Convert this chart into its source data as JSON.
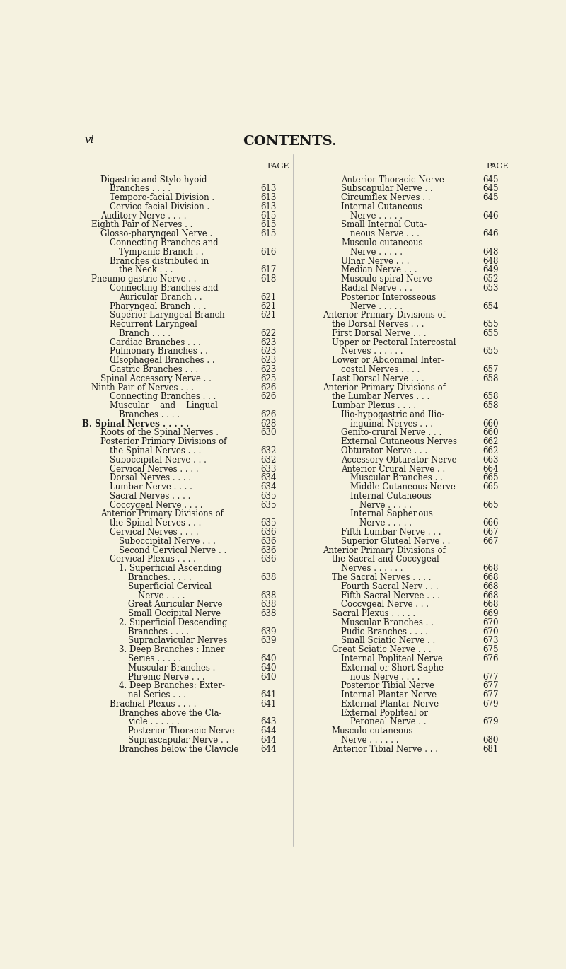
{
  "bg_color": "#f5f2e0",
  "text_color": "#1a1a1a",
  "page_label": "vi",
  "title": "CONTENTS.",
  "left_entries": [
    {
      "indent": 2,
      "text": "Digastric and Stylo-hyoid",
      "page": null
    },
    {
      "indent": 3,
      "text": "Branches . . . .",
      "page": "613"
    },
    {
      "indent": 3,
      "text": "Temporo-facial Division .",
      "page": "613"
    },
    {
      "indent": 3,
      "text": "Cervico-facial Division .",
      "page": "613"
    },
    {
      "indent": 2,
      "text": "Auditory Nerve . . . .",
      "page": "615"
    },
    {
      "indent": 1,
      "text": "Eighth Pair of Nerves . .",
      "page": "615"
    },
    {
      "indent": 2,
      "text": "Glosso-pharyngeal Nerve .",
      "page": "615"
    },
    {
      "indent": 3,
      "text": "Connecting Branches and",
      "page": null
    },
    {
      "indent": 4,
      "text": "Tympanic Branch . .",
      "page": "616"
    },
    {
      "indent": 3,
      "text": "Branches distributed in",
      "page": null
    },
    {
      "indent": 4,
      "text": "the Neck . . .",
      "page": "617"
    },
    {
      "indent": 1,
      "text": "Pneumo-gastric Nerve . .",
      "page": "618"
    },
    {
      "indent": 3,
      "text": "Connecting Branches and",
      "page": null
    },
    {
      "indent": 4,
      "text": "Auricular Branch . .",
      "page": "621"
    },
    {
      "indent": 3,
      "text": "Pharyngeal Branch . . .",
      "page": "621"
    },
    {
      "indent": 3,
      "text": "Superior Laryngeal Branch",
      "page": "621"
    },
    {
      "indent": 3,
      "text": "Recurrent Laryngeal",
      "page": null
    },
    {
      "indent": 4,
      "text": "Branch . . . .",
      "page": "622"
    },
    {
      "indent": 3,
      "text": "Cardiac Branches . . .",
      "page": "623"
    },
    {
      "indent": 3,
      "text": "Pulmonary Branches . .",
      "page": "623"
    },
    {
      "indent": 3,
      "text": "Œsophageal Branches . .",
      "page": "623"
    },
    {
      "indent": 3,
      "text": "Gastric Branches . . .",
      "page": "623"
    },
    {
      "indent": 2,
      "text": "Spinal Accessory Nerve . .",
      "page": "625"
    },
    {
      "indent": 1,
      "text": "Ninth Pair of Nerves . . .",
      "page": "626"
    },
    {
      "indent": 3,
      "text": "Connecting Branches . . .",
      "page": "626"
    },
    {
      "indent": 3,
      "text": "Muscular    and    Lingual",
      "page": null
    },
    {
      "indent": 4,
      "text": "Branches . . . .",
      "page": "626"
    },
    {
      "indent": 0,
      "text": "B. Spinal Nerves . . . . .",
      "page": "628",
      "bold": true
    },
    {
      "indent": 2,
      "text": "Roots of the Spinal Nerves .",
      "page": "630"
    },
    {
      "indent": 2,
      "text": "Posterior Primary Divisions of",
      "page": null
    },
    {
      "indent": 3,
      "text": "the Spinal Nerves . . .",
      "page": "632"
    },
    {
      "indent": 3,
      "text": "Suboccipital Nerve . . .",
      "page": "632"
    },
    {
      "indent": 3,
      "text": "Cervical Nerves . . . .",
      "page": "633"
    },
    {
      "indent": 3,
      "text": "Dorsal Nerves . . . .",
      "page": "634"
    },
    {
      "indent": 3,
      "text": "Lumbar Nerve . . . .",
      "page": "634"
    },
    {
      "indent": 3,
      "text": "Sacral Nerves . . . .",
      "page": "635"
    },
    {
      "indent": 3,
      "text": "Coccygeal Nerve . . . .",
      "page": "635"
    },
    {
      "indent": 2,
      "text": "Anterior Primary Divisions of",
      "page": null
    },
    {
      "indent": 3,
      "text": "the Spinal Nerves . . .",
      "page": "635"
    },
    {
      "indent": 3,
      "text": "Cervical Nerves . . . .",
      "page": "636"
    },
    {
      "indent": 4,
      "text": "Suboccipital Nerve . . .",
      "page": "636"
    },
    {
      "indent": 4,
      "text": "Second Cervical Nerve . .",
      "page": "636"
    },
    {
      "indent": 3,
      "text": "Cervical Plexus . . . .",
      "page": "636"
    },
    {
      "indent": 4,
      "text": "1. Superficial Ascending",
      "page": null
    },
    {
      "indent": 5,
      "text": "Branches. . . . .",
      "page": "638"
    },
    {
      "indent": 5,
      "text": "Superficial Cervical",
      "page": null
    },
    {
      "indent": 6,
      "text": "Nerve . . . .",
      "page": "638"
    },
    {
      "indent": 5,
      "text": "Great Auricular Nerve",
      "page": "638"
    },
    {
      "indent": 5,
      "text": "Small Occipital Nerve",
      "page": "638"
    },
    {
      "indent": 4,
      "text": "2. Superficial Descending",
      "page": null
    },
    {
      "indent": 5,
      "text": "Branches . . . .",
      "page": "639"
    },
    {
      "indent": 5,
      "text": "Supraclavicular Nerves",
      "page": "639"
    },
    {
      "indent": 4,
      "text": "3. Deep Branches : Inner",
      "page": null
    },
    {
      "indent": 5,
      "text": "Series . . . . .",
      "page": "640"
    },
    {
      "indent": 5,
      "text": "Muscular Branches .",
      "page": "640"
    },
    {
      "indent": 5,
      "text": "Phrenic Nerve . . .",
      "page": "640"
    },
    {
      "indent": 4,
      "text": "4. Deep Branches: Exter-",
      "page": null
    },
    {
      "indent": 5,
      "text": "nal Series . . .",
      "page": "641"
    },
    {
      "indent": 3,
      "text": "Brachial Plexus . . . .",
      "page": "641"
    },
    {
      "indent": 4,
      "text": "Branches above the Cla-",
      "page": null
    },
    {
      "indent": 5,
      "text": "vicle . . . . . .",
      "page": "643"
    },
    {
      "indent": 5,
      "text": "Posterior Thoracic Nerve",
      "page": "644"
    },
    {
      "indent": 5,
      "text": "Suprascapular Nerve . .",
      "page": "644"
    },
    {
      "indent": 4,
      "text": "Branches below the Clavicle",
      "page": "644"
    }
  ],
  "right_entries": [
    {
      "indent": 4,
      "text": "Anterior Thoracic Nerve",
      "page": "645"
    },
    {
      "indent": 4,
      "text": "Subscapular Nerve . .",
      "page": "645"
    },
    {
      "indent": 4,
      "text": "Circumflex Nerves . .",
      "page": "645"
    },
    {
      "indent": 4,
      "text": "Internal Cutaneous",
      "page": null
    },
    {
      "indent": 5,
      "text": "Nerve . . . . .",
      "page": "646"
    },
    {
      "indent": 4,
      "text": "Small Internal Cuta-",
      "page": null
    },
    {
      "indent": 5,
      "text": "neous Nerve . . .",
      "page": "646"
    },
    {
      "indent": 4,
      "text": "Musculo-cutaneous",
      "page": null
    },
    {
      "indent": 5,
      "text": "Nerve . . . . .",
      "page": "648"
    },
    {
      "indent": 4,
      "text": "Ulnar Nerve . . .",
      "page": "648"
    },
    {
      "indent": 4,
      "text": "Median Nerve . . .",
      "page": "649"
    },
    {
      "indent": 4,
      "text": "Musculo-spiral Nerve",
      "page": "652"
    },
    {
      "indent": 4,
      "text": "Radial Nerve . . .",
      "page": "653"
    },
    {
      "indent": 4,
      "text": "Posterior Interosseous",
      "page": null
    },
    {
      "indent": 5,
      "text": "Nerve . . . . .",
      "page": "654"
    },
    {
      "indent": 2,
      "text": "Anterior Primary Divisions of",
      "page": null
    },
    {
      "indent": 3,
      "text": "the Dorsal Nerves . . .",
      "page": "655"
    },
    {
      "indent": 3,
      "text": "First Dorsal Nerve . . .",
      "page": "655"
    },
    {
      "indent": 3,
      "text": "Upper or Pectoral Intercostal",
      "page": null
    },
    {
      "indent": 4,
      "text": "Nerves . . . . . .",
      "page": "655"
    },
    {
      "indent": 3,
      "text": "Lower or Abdominal Inter-",
      "page": null
    },
    {
      "indent": 4,
      "text": "costal Nerves . . . .",
      "page": "657"
    },
    {
      "indent": 3,
      "text": "Last Dorsal Nerve . . .",
      "page": "658"
    },
    {
      "indent": 2,
      "text": "Anterior Primary Divisions of",
      "page": null
    },
    {
      "indent": 3,
      "text": "the Lumbar Nerves . . .",
      "page": "658"
    },
    {
      "indent": 3,
      "text": "Lumbar Plexus . . . .",
      "page": "658"
    },
    {
      "indent": 4,
      "text": "Ilio-hypogastric and Ilio-",
      "page": null
    },
    {
      "indent": 5,
      "text": "inguinal Nerves . . .",
      "page": "660"
    },
    {
      "indent": 4,
      "text": "Genito-crural Nerve . . .",
      "page": "660"
    },
    {
      "indent": 4,
      "text": "External Cutaneous Nerves",
      "page": "662"
    },
    {
      "indent": 4,
      "text": "Obturator Nerve . . .",
      "page": "662"
    },
    {
      "indent": 4,
      "text": "Accessory Obturator Nerve",
      "page": "663"
    },
    {
      "indent": 4,
      "text": "Anterior Crural Nerve . .",
      "page": "664"
    },
    {
      "indent": 5,
      "text": "Muscular Branches . .",
      "page": "665"
    },
    {
      "indent": 5,
      "text": "Middle Cutaneous Nerve",
      "page": "665"
    },
    {
      "indent": 5,
      "text": "Internal Cutaneous",
      "page": null
    },
    {
      "indent": 6,
      "text": "Nerve . . . . .",
      "page": "665"
    },
    {
      "indent": 5,
      "text": "Internal Saphenous",
      "page": null
    },
    {
      "indent": 6,
      "text": "Nerve . . . . .",
      "page": "666"
    },
    {
      "indent": 4,
      "text": "Fifth Lumbar Nerve . . .",
      "page": "667"
    },
    {
      "indent": 4,
      "text": "Superior Gluteal Nerve . .",
      "page": "667"
    },
    {
      "indent": 2,
      "text": "Anterior Primary Divisions of",
      "page": null
    },
    {
      "indent": 3,
      "text": "the Sacral and Coccygeal",
      "page": null
    },
    {
      "indent": 4,
      "text": "Nerves . . . . . .",
      "page": "668"
    },
    {
      "indent": 3,
      "text": "The Sacral Nerves . . . .",
      "page": "668"
    },
    {
      "indent": 4,
      "text": "Fourth Sacral Nerv . . .",
      "page": "668"
    },
    {
      "indent": 4,
      "text": "Fifth Sacral Nervee . . .",
      "page": "668"
    },
    {
      "indent": 4,
      "text": "Coccygeal Nerve . . .",
      "page": "668"
    },
    {
      "indent": 3,
      "text": "Sacral Plexus . . . . .",
      "page": "669"
    },
    {
      "indent": 4,
      "text": "Muscular Branches . .",
      "page": "670"
    },
    {
      "indent": 4,
      "text": "Pudic Branches . . . .",
      "page": "670"
    },
    {
      "indent": 4,
      "text": "Small Sciatic Nerve . .",
      "page": "673"
    },
    {
      "indent": 3,
      "text": "Great Sciatic Nerve . . .",
      "page": "675"
    },
    {
      "indent": 4,
      "text": "Internal Popliteal Nerve",
      "page": "676"
    },
    {
      "indent": 4,
      "text": "External or Short Saphe-",
      "page": null
    },
    {
      "indent": 5,
      "text": "nous Nerve . . . .",
      "page": "677"
    },
    {
      "indent": 4,
      "text": "Posterior Tibial Nerve",
      "page": "677"
    },
    {
      "indent": 4,
      "text": "Internal Plantar Nerve",
      "page": "677"
    },
    {
      "indent": 4,
      "text": "External Plantar Nerve",
      "page": "679"
    },
    {
      "indent": 4,
      "text": "External Popliteal or",
      "page": null
    },
    {
      "indent": 5,
      "text": "Peroneal Nerve . .",
      "page": "679"
    },
    {
      "indent": 3,
      "text": "Musculo-cutaneous",
      "page": null
    },
    {
      "indent": 4,
      "text": "Nerve . . . . . .",
      "page": "680"
    },
    {
      "indent": 3,
      "text": "Anterior Tibial Nerve . . .",
      "page": "681"
    }
  ]
}
